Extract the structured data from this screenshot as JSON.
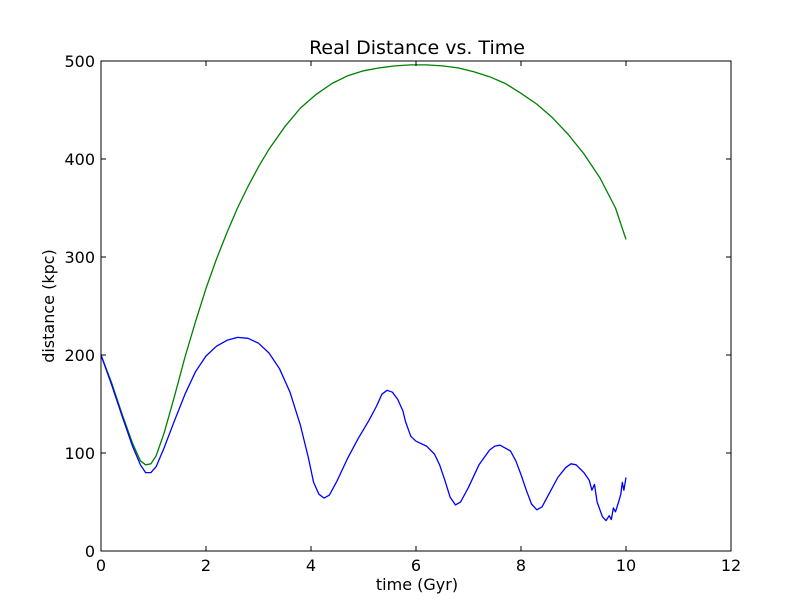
{
  "chart_data": {
    "type": "line",
    "title": "Real Distance vs. Time",
    "xlabel": "time (Gyr)",
    "ylabel": "distance (kpc)",
    "xlim": [
      0,
      12
    ],
    "ylim": [
      0,
      500
    ],
    "xticks": [
      0,
      2,
      4,
      6,
      8,
      10,
      12
    ],
    "yticks": [
      0,
      100,
      200,
      300,
      400,
      500
    ],
    "xtick_labels": [
      "0",
      "2",
      "4",
      "6",
      "8",
      "10",
      "12"
    ],
    "ytick_labels": [
      "0",
      "100",
      "200",
      "300",
      "400",
      "500"
    ],
    "grid": false,
    "legend": "none",
    "series": [
      {
        "color": "#008000",
        "points": [
          [
            0.0,
            200
          ],
          [
            0.2,
            172
          ],
          [
            0.4,
            140
          ],
          [
            0.6,
            110
          ],
          [
            0.75,
            92
          ],
          [
            0.85,
            88
          ],
          [
            0.95,
            89
          ],
          [
            1.05,
            97
          ],
          [
            1.2,
            120
          ],
          [
            1.4,
            158
          ],
          [
            1.6,
            198
          ],
          [
            1.8,
            234
          ],
          [
            2.0,
            268
          ],
          [
            2.2,
            298
          ],
          [
            2.4,
            325
          ],
          [
            2.6,
            350
          ],
          [
            2.8,
            372
          ],
          [
            3.0,
            392
          ],
          [
            3.2,
            410
          ],
          [
            3.5,
            433
          ],
          [
            3.8,
            452
          ],
          [
            4.1,
            466
          ],
          [
            4.4,
            477
          ],
          [
            4.7,
            485
          ],
          [
            5.0,
            490
          ],
          [
            5.3,
            493
          ],
          [
            5.6,
            495
          ],
          [
            5.9,
            496
          ],
          [
            6.2,
            496
          ],
          [
            6.5,
            495
          ],
          [
            6.8,
            493
          ],
          [
            7.1,
            489
          ],
          [
            7.4,
            484
          ],
          [
            7.7,
            477
          ],
          [
            8.0,
            467
          ],
          [
            8.3,
            456
          ],
          [
            8.6,
            442
          ],
          [
            8.9,
            425
          ],
          [
            9.2,
            405
          ],
          [
            9.5,
            381
          ],
          [
            9.8,
            350
          ],
          [
            10.0,
            318
          ]
        ]
      },
      {
        "color": "#0000ff",
        "points": [
          [
            0.0,
            200
          ],
          [
            0.2,
            170
          ],
          [
            0.4,
            138
          ],
          [
            0.6,
            107
          ],
          [
            0.75,
            88
          ],
          [
            0.85,
            80
          ],
          [
            0.95,
            80
          ],
          [
            1.05,
            86
          ],
          [
            1.2,
            105
          ],
          [
            1.4,
            133
          ],
          [
            1.6,
            160
          ],
          [
            1.8,
            183
          ],
          [
            2.0,
            199
          ],
          [
            2.2,
            209
          ],
          [
            2.4,
            215
          ],
          [
            2.6,
            218
          ],
          [
            2.8,
            217
          ],
          [
            3.0,
            212
          ],
          [
            3.2,
            202
          ],
          [
            3.4,
            186
          ],
          [
            3.6,
            162
          ],
          [
            3.8,
            128
          ],
          [
            3.95,
            95
          ],
          [
            4.05,
            70
          ],
          [
            4.15,
            58
          ],
          [
            4.25,
            54
          ],
          [
            4.35,
            57
          ],
          [
            4.5,
            72
          ],
          [
            4.7,
            95
          ],
          [
            4.9,
            115
          ],
          [
            5.1,
            133
          ],
          [
            5.25,
            148
          ],
          [
            5.35,
            160
          ],
          [
            5.45,
            164
          ],
          [
            5.55,
            162
          ],
          [
            5.65,
            155
          ],
          [
            5.75,
            143
          ],
          [
            5.8,
            132
          ],
          [
            5.9,
            117
          ],
          [
            6.0,
            112
          ],
          [
            6.2,
            107
          ],
          [
            6.35,
            99
          ],
          [
            6.45,
            88
          ],
          [
            6.55,
            72
          ],
          [
            6.65,
            55
          ],
          [
            6.75,
            47
          ],
          [
            6.85,
            50
          ],
          [
            7.0,
            65
          ],
          [
            7.2,
            88
          ],
          [
            7.4,
            103
          ],
          [
            7.5,
            107
          ],
          [
            7.6,
            108
          ],
          [
            7.8,
            102
          ],
          [
            7.9,
            92
          ],
          [
            8.0,
            78
          ],
          [
            8.1,
            62
          ],
          [
            8.2,
            48
          ],
          [
            8.3,
            42
          ],
          [
            8.4,
            45
          ],
          [
            8.55,
            60
          ],
          [
            8.7,
            75
          ],
          [
            8.85,
            85
          ],
          [
            8.95,
            89
          ],
          [
            9.05,
            88
          ],
          [
            9.2,
            80
          ],
          [
            9.3,
            72
          ],
          [
            9.35,
            62
          ],
          [
            9.4,
            68
          ],
          [
            9.45,
            50
          ],
          [
            9.55,
            35
          ],
          [
            9.62,
            31
          ],
          [
            9.68,
            36
          ],
          [
            9.72,
            32
          ],
          [
            9.76,
            44
          ],
          [
            9.8,
            40
          ],
          [
            9.86,
            50
          ],
          [
            9.9,
            58
          ],
          [
            9.93,
            70
          ],
          [
            9.96,
            62
          ],
          [
            10.0,
            75
          ]
        ]
      }
    ]
  }
}
